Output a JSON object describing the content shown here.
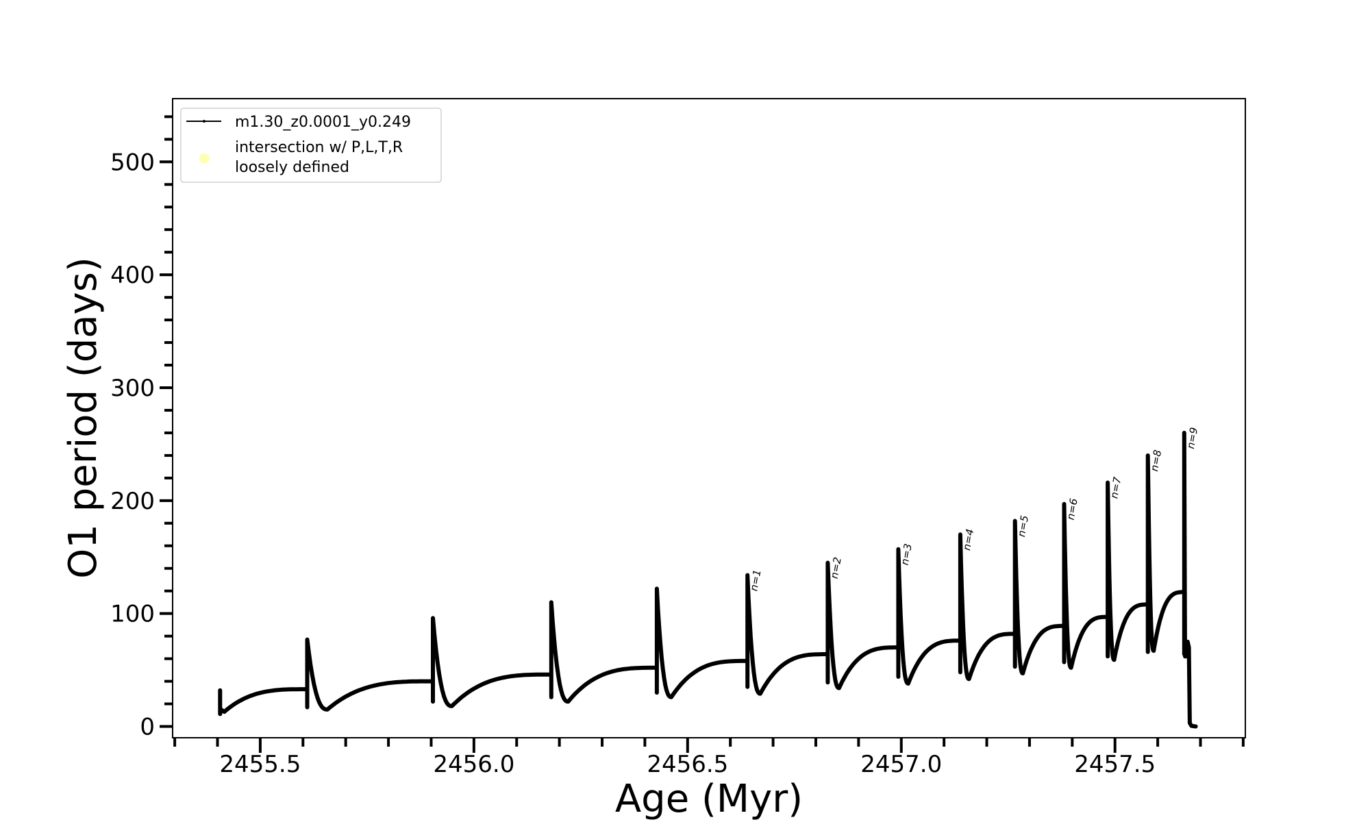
{
  "chart_data": {
    "type": "line",
    "title": "",
    "xlabel": "Age (Myr)",
    "ylabel": "O1 period (days)",
    "xlim": [
      2455.295,
      2457.805
    ],
    "ylim": [
      -10,
      556
    ],
    "xticks": [
      2455.5,
      2456.0,
      2456.5,
      2457.0,
      2457.5
    ],
    "xtick_labels": [
      "2455.5",
      "2456.0",
      "2456.5",
      "2457.0",
      "2457.5"
    ],
    "x_minor_step": 0.1,
    "yticks": [
      0,
      100,
      200,
      300,
      400,
      500
    ],
    "ytick_labels": [
      "0",
      "100",
      "200",
      "300",
      "400",
      "500"
    ],
    "y_minor_step": 20,
    "grid": false,
    "legend": {
      "placement": "top-left",
      "entries": [
        {
          "label": "m1.30_z0.0001_y0.249",
          "marker": "line-dot",
          "color": "#000000"
        },
        {
          "label_lines": [
            "intersection w/ P,L,T,R",
            "loosely defined"
          ],
          "marker": "circle",
          "color": "#ffffb3"
        }
      ]
    },
    "series": [
      {
        "name": "m1.30_z0.0001_y0.249",
        "color": "#000000",
        "start": {
          "x": 2455.406,
          "y": 18,
          "peak": 32,
          "bottom": 11,
          "dip": 13
        },
        "pulses": [
          {
            "x": 2455.61,
            "plateau": 33,
            "bottom": 17,
            "peak": 77,
            "dip": 15
          },
          {
            "x": 2455.904,
            "plateau": 40,
            "bottom": 22,
            "peak": 96,
            "dip": 18
          },
          {
            "x": 2456.181,
            "plateau": 46,
            "bottom": 26,
            "peak": 110,
            "dip": 22
          },
          {
            "x": 2456.428,
            "plateau": 52,
            "bottom": 30,
            "peak": 122,
            "dip": 26
          },
          {
            "x": 2456.64,
            "plateau": 58,
            "bottom": 35,
            "peak": 134,
            "dip": 29,
            "label": "n=1"
          },
          {
            "x": 2456.828,
            "plateau": 64,
            "bottom": 39,
            "peak": 145,
            "dip": 34,
            "label": "n=2"
          },
          {
            "x": 2456.993,
            "plateau": 70,
            "bottom": 44,
            "peak": 157,
            "dip": 38,
            "label": "n=3"
          },
          {
            "x": 2457.138,
            "plateau": 76,
            "bottom": 48,
            "peak": 170,
            "dip": 42,
            "label": "n=4"
          },
          {
            "x": 2457.266,
            "plateau": 82,
            "bottom": 53,
            "peak": 182,
            "dip": 47,
            "label": "n=5"
          },
          {
            "x": 2457.381,
            "plateau": 89,
            "bottom": 57,
            "peak": 197,
            "dip": 52,
            "label": "n=6"
          },
          {
            "x": 2457.483,
            "plateau": 97,
            "bottom": 62,
            "peak": 216,
            "dip": 59,
            "label": "n=7"
          },
          {
            "x": 2457.577,
            "plateau": 108,
            "bottom": 66,
            "peak": 240,
            "dip": 67,
            "label": "n=8"
          },
          {
            "x": 2457.662,
            "plateau": 119,
            "bottom": 64,
            "peak": 260,
            "dip": 62,
            "label": "n=9"
          }
        ],
        "end": {
          "x": 2457.689,
          "y": 0,
          "bump": 75
        }
      }
    ]
  }
}
